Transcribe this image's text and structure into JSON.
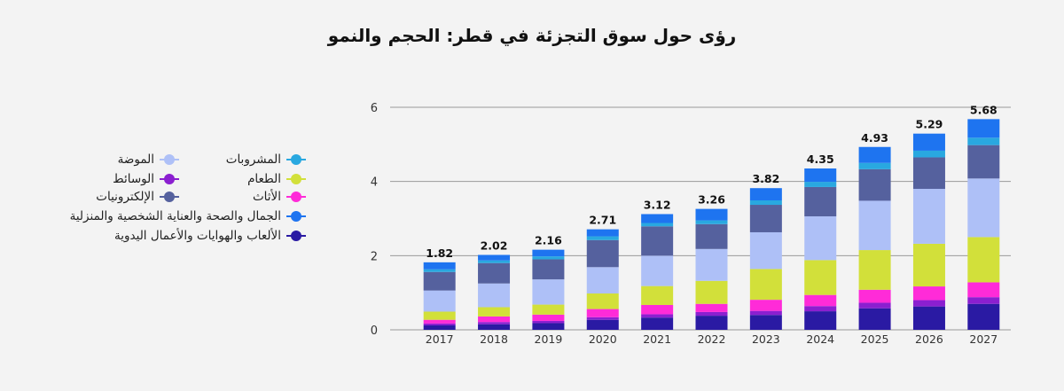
{
  "chart_data": {
    "type": "bar",
    "stacked": true,
    "title": "رؤى حول سوق التجزئة في قطر: الحجم والنمو",
    "categories": [
      "2017",
      "2018",
      "2019",
      "2020",
      "2021",
      "2022",
      "2023",
      "2024",
      "2025",
      "2026",
      "2027"
    ],
    "totals": [
      "1.82",
      "2.02",
      "2.16",
      "2.71",
      "3.12",
      "3.26",
      "3.82",
      "4.35",
      "4.93",
      "5.29",
      "5.68"
    ],
    "ylim": [
      0,
      6
    ],
    "yticks": [
      "0",
      "2",
      "4",
      "6"
    ],
    "grid": true,
    "legend_position": "left",
    "series": [
      {
        "name": "الألعاب والهوايات والأعمال اليدوية",
        "color": "#2a1aa3",
        "values": [
          0.12,
          0.15,
          0.18,
          0.27,
          0.33,
          0.38,
          0.4,
          0.5,
          0.58,
          0.63,
          0.7
        ]
      },
      {
        "name": "الوسائط",
        "color": "#8b1fd0",
        "values": [
          0.05,
          0.06,
          0.06,
          0.07,
          0.09,
          0.1,
          0.11,
          0.14,
          0.15,
          0.17,
          0.18
        ]
      },
      {
        "name": "الأثاث",
        "color": "#ff2bd8",
        "values": [
          0.1,
          0.15,
          0.17,
          0.22,
          0.25,
          0.22,
          0.3,
          0.3,
          0.35,
          0.37,
          0.4
        ]
      },
      {
        "name": "الطعام",
        "color": "#d2e03a",
        "values": [
          0.22,
          0.25,
          0.27,
          0.42,
          0.51,
          0.62,
          0.83,
          0.94,
          1.07,
          1.15,
          1.22
        ]
      },
      {
        "name": "الموضة",
        "color": "#aec0f7",
        "values": [
          0.57,
          0.64,
          0.68,
          0.71,
          0.82,
          0.86,
          0.99,
          1.18,
          1.33,
          1.48,
          1.58
        ]
      },
      {
        "name": "الإلكترونيات",
        "color": "#55619e",
        "values": [
          0.5,
          0.55,
          0.54,
          0.73,
          0.79,
          0.67,
          0.74,
          0.79,
          0.85,
          0.85,
          0.9
        ]
      },
      {
        "name": "المشروبات",
        "color": "#29a8e0",
        "values": [
          0.07,
          0.07,
          0.08,
          0.1,
          0.09,
          0.1,
          0.12,
          0.14,
          0.17,
          0.18,
          0.2
        ]
      },
      {
        "name": "الجمال والصحة والعناية الشخصية والمنزلية",
        "color": "#1e74f0",
        "values": [
          0.19,
          0.15,
          0.18,
          0.19,
          0.24,
          0.31,
          0.33,
          0.36,
          0.43,
          0.46,
          0.5
        ]
      }
    ]
  },
  "legend": {
    "right_column": [
      "المشروبات",
      "الطعام",
      "الأثاث",
      "الجمال والصحة والعناية الشخصية والمنزلية",
      "الألعاب والهوايات والأعمال اليدوية"
    ],
    "left_column": [
      "الموضة",
      "الوسائط",
      "الإلكترونيات"
    ],
    "right_colors": [
      "#29a8e0",
      "#d2e03a",
      "#ff2bd8",
      "#1e74f0",
      "#2a1aa3"
    ],
    "left_colors": [
      "#aec0f7",
      "#8b1fd0",
      "#55619e"
    ]
  }
}
